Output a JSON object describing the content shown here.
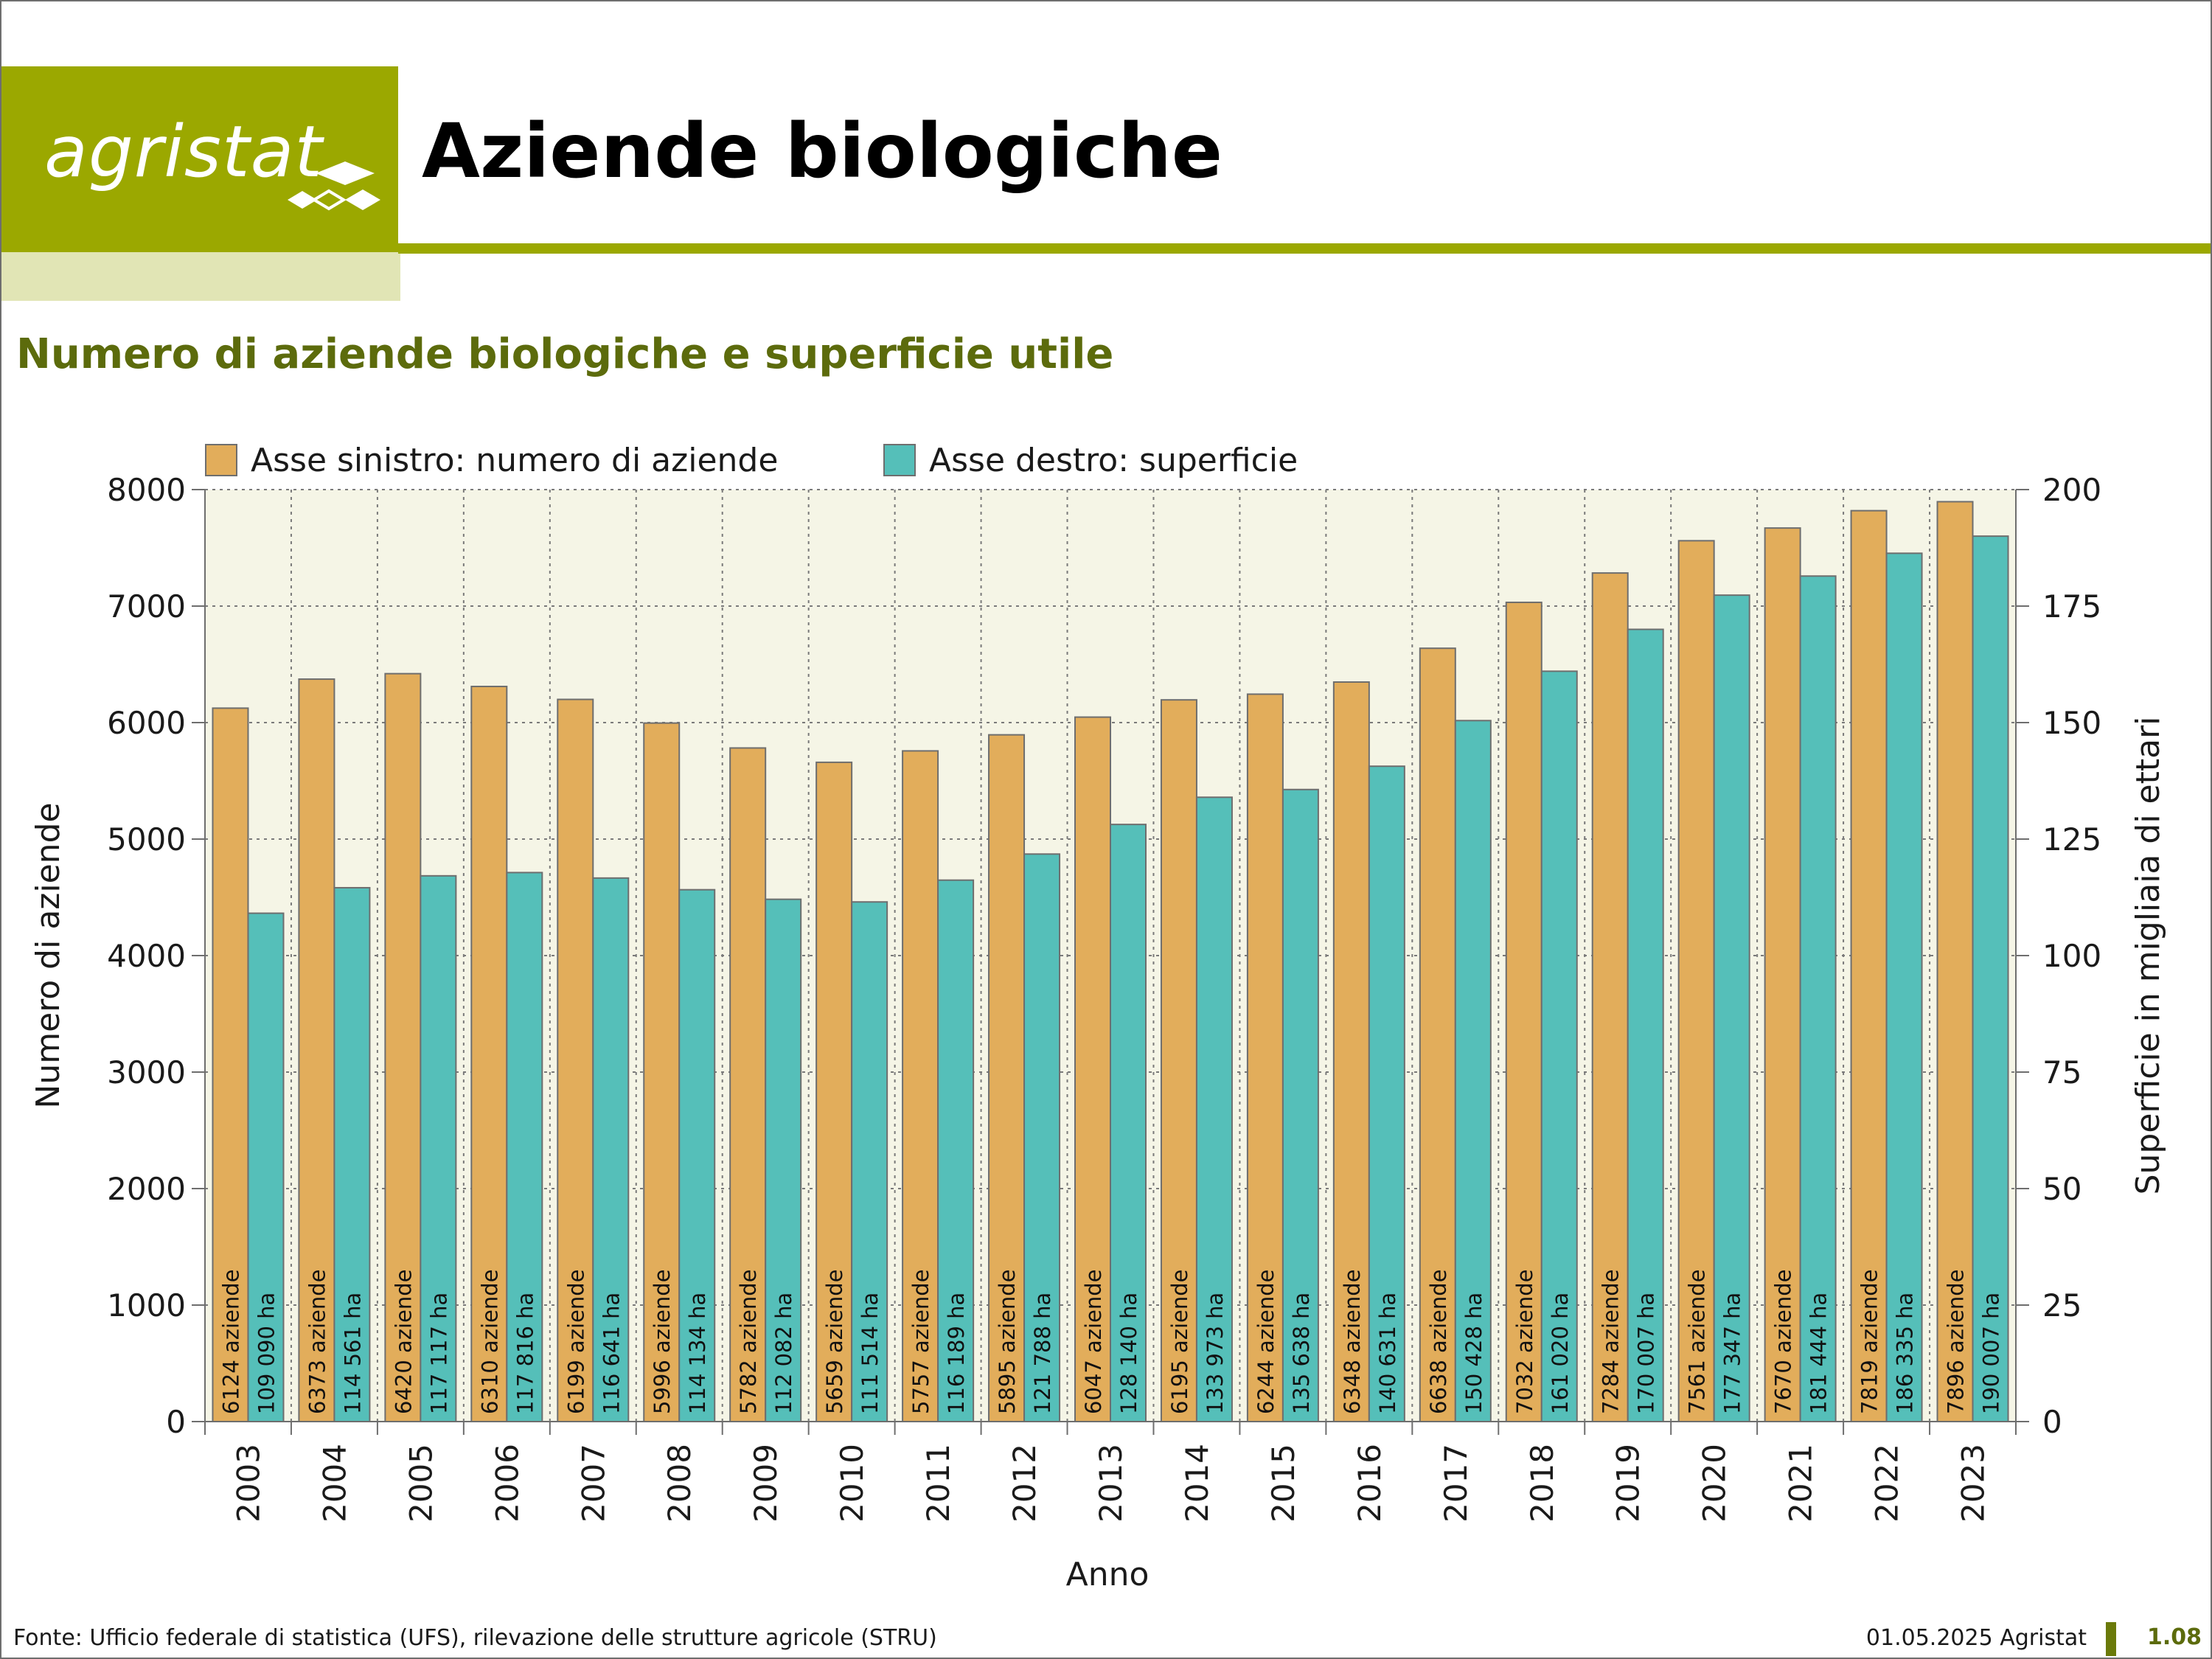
{
  "header": {
    "logo_text": "agristat",
    "title": "Aziende biologiche"
  },
  "subtitle": "Numero di aziende biologiche e superficie utile",
  "legend": {
    "left": "Asse sinistro: numero di aziende",
    "right": "Asse destro: superficie"
  },
  "colors": {
    "brand": "#9ba800",
    "subtitle": "#5c6b0c",
    "aziende_bar": "#e2ad5b",
    "superficie_bar": "#55bfb9",
    "plot_background": "#f5f5e6"
  },
  "footer": {
    "source": "Fonte: Ufficio federale di statistica (UFS), rilevazione delle strutture agricole (STRU)",
    "date": "01.05.2025 Agristat",
    "page": "1.08"
  },
  "chart_data": {
    "type": "bar",
    "xlabel": "Anno",
    "ylabel": "Numero di aziende",
    "y2label": "Superficie in migliaia di ettari",
    "ylim": [
      0,
      8000
    ],
    "y2lim": [
      0,
      200
    ],
    "yticks": [
      "0",
      "1000",
      "2000",
      "3000",
      "4000",
      "5000",
      "6000",
      "7000",
      "8000"
    ],
    "y2ticks": [
      "0",
      "25",
      "50",
      "75",
      "100",
      "125",
      "150",
      "175",
      "200"
    ],
    "grid": true,
    "legend_position": "top",
    "categories": [
      "2003",
      "2004",
      "2005",
      "2006",
      "2007",
      "2008",
      "2009",
      "2010",
      "2011",
      "2012",
      "2013",
      "2014",
      "2015",
      "2016",
      "2017",
      "2018",
      "2019",
      "2020",
      "2021",
      "2022",
      "2023"
    ],
    "series": [
      {
        "name": "Asse sinistro: numero di aziende",
        "axis": "left",
        "values": [
          6124,
          6373,
          6420,
          6310,
          6199,
          5996,
          5782,
          5659,
          5757,
          5895,
          6047,
          6195,
          6244,
          6348,
          6638,
          7032,
          7284,
          7561,
          7670,
          7819,
          7896
        ],
        "labels": [
          "6124 aziende",
          "6373 aziende",
          "6420 aziende",
          "6310 aziende",
          "6199 aziende",
          "5996 aziende",
          "5782 aziende",
          "5659 aziende",
          "5757 aziende",
          "5895 aziende",
          "6047 aziende",
          "6195 aziende",
          "6244 aziende",
          "6348 aziende",
          "6638 aziende",
          "7032 aziende",
          "7284 aziende",
          "7561 aziende",
          "7670 aziende",
          "7819 aziende",
          "7896 aziende"
        ]
      },
      {
        "name": "Asse destro: superficie",
        "axis": "right",
        "values": [
          109.09,
          114.561,
          117.117,
          117.816,
          116.641,
          114.134,
          112.082,
          111.514,
          116.189,
          121.788,
          128.14,
          133.973,
          135.638,
          140.631,
          150.428,
          161.02,
          170.007,
          177.347,
          181.444,
          186.335,
          190.007
        ],
        "labels": [
          "109 090 ha",
          "114 561 ha",
          "117 117 ha",
          "117 816 ha",
          "116 641 ha",
          "114 134 ha",
          "112 082 ha",
          "111 514 ha",
          "116 189 ha",
          "121 788 ha",
          "128 140 ha",
          "133 973 ha",
          "135 638 ha",
          "140 631 ha",
          "150 428 ha",
          "161 020 ha",
          "170 007 ha",
          "177 347 ha",
          "181 444 ha",
          "186 335 ha",
          "190 007 ha"
        ]
      }
    ]
  }
}
